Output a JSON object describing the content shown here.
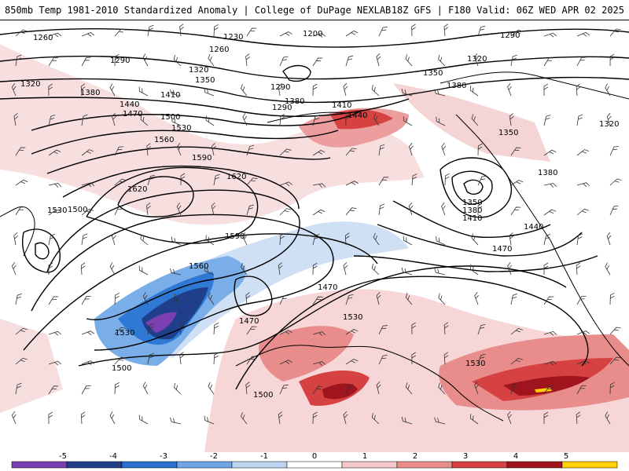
{
  "header": {
    "left": "850mb Temp 1981-2010 Standardized Anomaly | College of DuPage NEXLAB",
    "right": "18Z GFS | F180 Valid: 06Z WED APR 02 2025"
  },
  "contour_labels": [
    "1260",
    "1230",
    "1200",
    "1290",
    "1260",
    "1290",
    "1320",
    "1350",
    "1320",
    "1380",
    "1410",
    "1440",
    "1470",
    "1500",
    "1530",
    "1560",
    "1590",
    "1620",
    "1620",
    "1590",
    "1560",
    "1530",
    "1500",
    "1530",
    "1470",
    "1470",
    "1500",
    "1530",
    "1500",
    "1530",
    "1440",
    "1470",
    "1350",
    "1380",
    "1410",
    "1380",
    "1320",
    "1350",
    "1290",
    "1320",
    "1350",
    "1380",
    "1410",
    "1440",
    "1380",
    "1290"
  ],
  "colorbar": {
    "ticks": [
      "-5",
      "-4",
      "-3",
      "-2",
      "-1",
      "0",
      "1",
      "2",
      "3",
      "4",
      "5"
    ],
    "colors": [
      "#7a3fb0",
      "#1f3f8a",
      "#2f6fd0",
      "#6fa6e6",
      "#bcd4f0",
      "#ffffff",
      "#f2c8c8",
      "#e88c8c",
      "#d64242",
      "#a0141e",
      "#ffd000"
    ]
  }
}
